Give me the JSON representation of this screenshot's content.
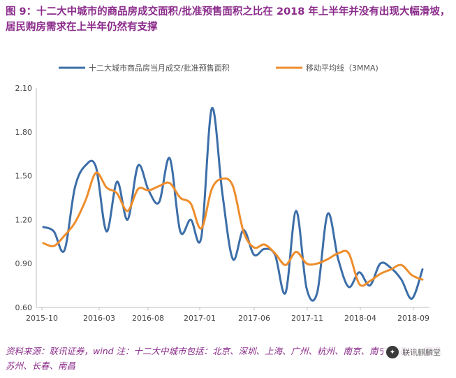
{
  "header": {
    "title": "图 9：十二大中城市的商品房成交面积/批准预售面积之比在 2018 年上半年并没有出现大幅滑坡，居民购房需求在上半年仍然有支撑"
  },
  "source": {
    "text": "资料来源：联讯证券，wind 注：十二大中城市包括：北京、深圳、上海、广州、杭州、南京、南宁、福州、厦门、苏州、长春、南昌"
  },
  "watermark": {
    "text": "联讯麒麟堂"
  },
  "colors": {
    "series1": "#3c6ea8",
    "series2": "#ee8d2c",
    "axis": "#bfbfbf",
    "title": "#8b2c8b"
  },
  "chart_data": {
    "type": "line",
    "title": "",
    "xlabel": "",
    "ylabel": "",
    "ylim": [
      0.6,
      2.1
    ],
    "yticks": [
      "0.60",
      "0.90",
      "1.20",
      "1.50",
      "1.80",
      "2.10"
    ],
    "xticks": [
      "2015-10",
      "2016-03",
      "2016-08",
      "2017-01",
      "2017-06",
      "2017-11",
      "2018-04",
      "2018-09"
    ],
    "grid": false,
    "legend_position": "top",
    "series": [
      {
        "name": "十二大城市商品房当月成交/批准预售面积",
        "values": [
          1.15,
          1.12,
          0.99,
          1.42,
          1.57,
          1.56,
          1.12,
          1.46,
          1.2,
          1.57,
          1.4,
          1.32,
          1.62,
          1.12,
          1.2,
          1.08,
          1.96,
          1.38,
          0.93,
          1.13,
          0.96,
          1.0,
          0.96,
          0.7,
          1.26,
          0.73,
          0.7,
          1.24,
          0.93,
          0.74,
          0.84,
          0.75,
          0.9,
          0.87,
          0.79,
          0.66,
          0.86
        ]
      },
      {
        "name": "移动平均线（3MMA)",
        "values": [
          1.04,
          1.02,
          1.09,
          1.18,
          1.33,
          1.52,
          1.42,
          1.38,
          1.26,
          1.41,
          1.4,
          1.43,
          1.45,
          1.35,
          1.31,
          1.14,
          1.41,
          1.48,
          1.43,
          1.12,
          1.01,
          1.03,
          0.97,
          0.89,
          0.98,
          0.9,
          0.9,
          0.93,
          0.97,
          0.97,
          0.76,
          0.78,
          0.83,
          0.86,
          0.89,
          0.82,
          0.79
        ]
      }
    ]
  }
}
